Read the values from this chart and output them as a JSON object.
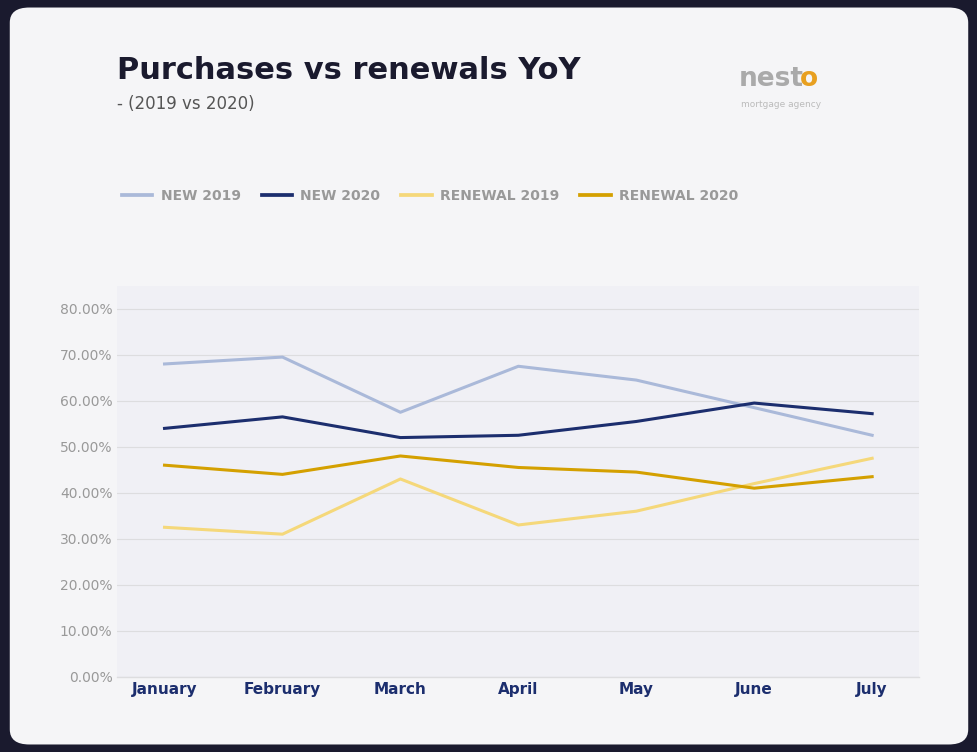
{
  "title": "Purchases vs renewals YoY",
  "subtitle": "- (2019 vs 2020)",
  "months": [
    "January",
    "February",
    "March",
    "April",
    "May",
    "June",
    "July"
  ],
  "new_2019": [
    0.68,
    0.695,
    0.575,
    0.675,
    0.645,
    0.585,
    0.525
  ],
  "new_2020": [
    0.54,
    0.565,
    0.52,
    0.525,
    0.555,
    0.595,
    0.572
  ],
  "renewal_2019": [
    0.325,
    0.31,
    0.43,
    0.33,
    0.36,
    0.42,
    0.475
  ],
  "renewal_2020": [
    0.46,
    0.44,
    0.48,
    0.455,
    0.445,
    0.41,
    0.435
  ],
  "color_new_2019": "#aab9d9",
  "color_new_2020": "#1c2e6e",
  "color_renewal_2019": "#f5d87a",
  "color_renewal_2020": "#d4a000",
  "outer_background": "#1a1a2e",
  "card_background": "#f5f5f7",
  "plot_background": "#f0f0f5",
  "ylim": [
    0.0,
    0.85
  ],
  "yticks": [
    0.0,
    0.1,
    0.2,
    0.3,
    0.4,
    0.5,
    0.6,
    0.7,
    0.8
  ],
  "legend_labels": [
    "NEW 2019",
    "NEW 2020",
    "RENEWAL 2019",
    "RENEWAL 2020"
  ],
  "title_fontsize": 22,
  "subtitle_fontsize": 12,
  "tick_fontsize": 11,
  "legend_fontsize": 10,
  "line_width": 2.2,
  "nesto_gray": "#aaaaaa",
  "nesto_orange": "#e8a020",
  "nesto_small": "#bbbbbb",
  "title_color": "#1a1a2e",
  "subtitle_color": "#555555",
  "grid_color": "#dddddf",
  "tick_color": "#999999",
  "xticklabel_color": "#1c2e6e"
}
